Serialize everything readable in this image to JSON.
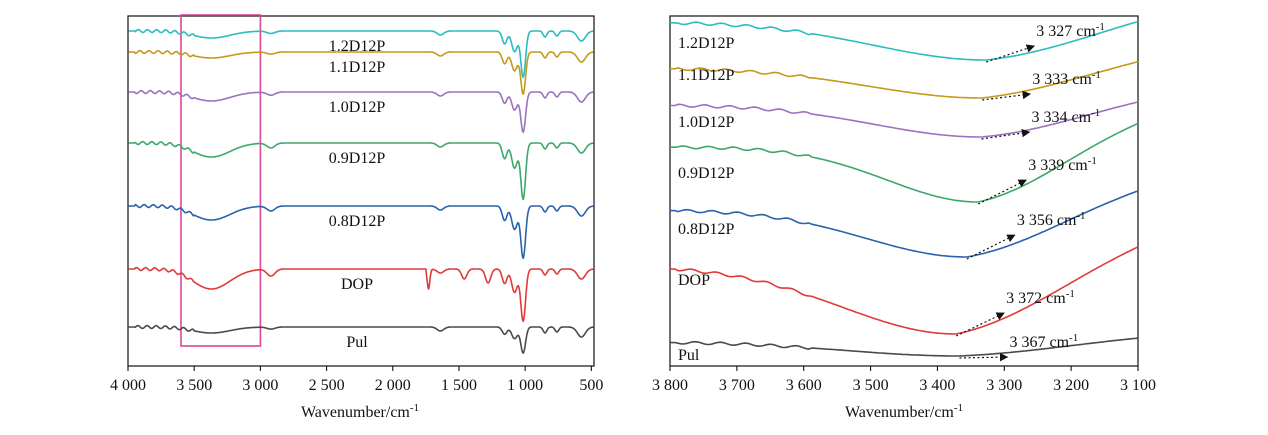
{
  "chart_data": [
    {
      "type": "line",
      "xlabel": "Wavenumber/cm",
      "xlabel_sup": "-1",
      "xlim": [
        4000,
        480
      ],
      "x_reversed": true,
      "y_axis_visible": false,
      "xticks": [
        4000,
        3500,
        3000,
        2500,
        2000,
        1500,
        1000,
        500
      ],
      "xtick_labels": [
        "4 000",
        "3 500",
        "3 000",
        "2 500",
        "2 000",
        "1 500",
        "1 000",
        "500"
      ],
      "highlight_region": {
        "x_range": [
          3600,
          3000
        ],
        "color": "#d9479a"
      },
      "series": [
        {
          "name": "1.2D12P",
          "color": "#2bbcc0"
        },
        {
          "name": "1.1D12P",
          "color": "#c39a1c"
        },
        {
          "name": "1.0D12P",
          "color": "#9a72bf"
        },
        {
          "name": "0.9D12P",
          "color": "#3ca86a"
        },
        {
          "name": "0.8D12P",
          "color": "#2a62ab"
        },
        {
          "name": "DOP",
          "color": "#de3b3b"
        },
        {
          "name": "Pul",
          "color": "#4a4a4a"
        }
      ]
    },
    {
      "type": "line",
      "xlabel": "Wavenumber/cm",
      "xlabel_sup": "-1",
      "xlim": [
        3800,
        3100
      ],
      "x_reversed": true,
      "y_axis_visible": false,
      "xticks": [
        3800,
        3700,
        3600,
        3500,
        3400,
        3300,
        3200,
        3100
      ],
      "xtick_labels": [
        "3 800",
        "3 700",
        "3 600",
        "3 500",
        "3 400",
        "3 300",
        "3 200",
        "3 100"
      ],
      "series": [
        {
          "name": "1.2D12P",
          "color": "#2bbcc0",
          "peak_label": "3 327 cm",
          "peak_x": 3327
        },
        {
          "name": "1.1D12P",
          "color": "#c39a1c",
          "peak_label": "3 333 cm",
          "peak_x": 3333
        },
        {
          "name": "1.0D12P",
          "color": "#9a72bf",
          "peak_label": "3 334 cm",
          "peak_x": 3334
        },
        {
          "name": "0.9D12P",
          "color": "#3ca86a",
          "peak_label": "3 339 cm",
          "peak_x": 3339
        },
        {
          "name": "0.8D12P",
          "color": "#2a62ab",
          "peak_label": "3 356 cm",
          "peak_x": 3356
        },
        {
          "name": "DOP",
          "color": "#de3b3b",
          "peak_label": "3 372 cm",
          "peak_x": 3372
        },
        {
          "name": "Pul",
          "color": "#4a4a4a",
          "peak_label": "3 367 cm",
          "peak_x": 3367
        }
      ],
      "unit_sup": "-1"
    }
  ]
}
